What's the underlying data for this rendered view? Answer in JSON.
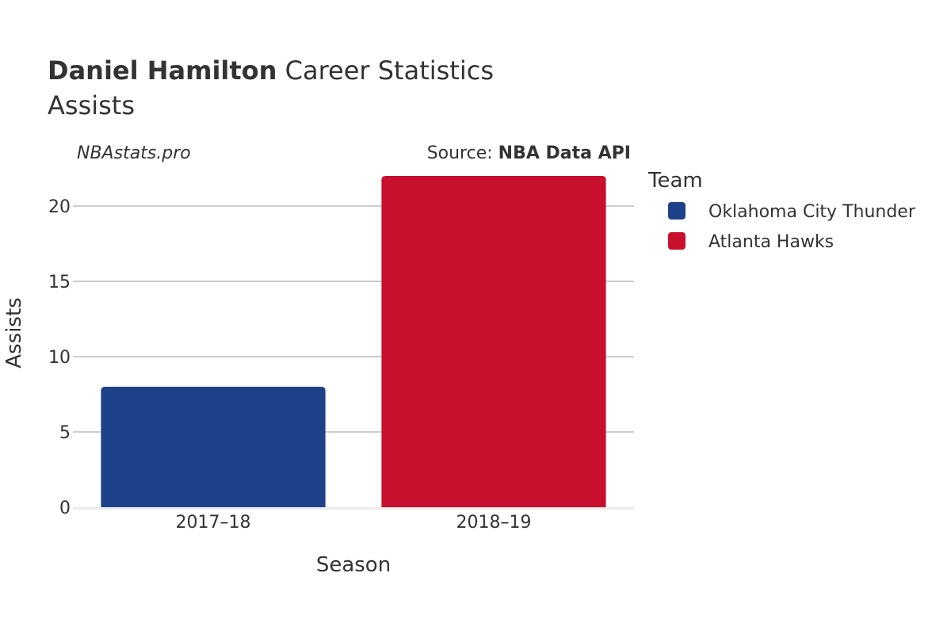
{
  "header": {
    "player_name": "Daniel Hamilton",
    "title_rest": " Career Statistics",
    "subtitle": "Assists"
  },
  "credits": {
    "site": "NBAstats.pro",
    "source_prefix": "Source: ",
    "source_name": "NBA Data API"
  },
  "legend": {
    "title": "Team",
    "placement": "right"
  },
  "colors": {
    "Oklahoma City Thunder": "#1d428a",
    "Atlanta Hawks": "#c8102e",
    "grid": "#bbbbbb",
    "text": "#333333"
  },
  "chart_data": {
    "type": "bar",
    "xlabel": "Season",
    "ylabel": "Assists",
    "ylim": [
      0,
      22
    ],
    "yticks": [
      0,
      5,
      10,
      15,
      20
    ],
    "grid": true,
    "legend_placement": "right",
    "categories": [
      "2017–18",
      "2018–19"
    ],
    "series": [
      {
        "name": "Oklahoma City Thunder",
        "color": "#1d428a",
        "category": "2017–18",
        "value": 8
      },
      {
        "name": "Atlanta Hawks",
        "color": "#c8102e",
        "category": "2018–19",
        "value": 22
      }
    ]
  }
}
